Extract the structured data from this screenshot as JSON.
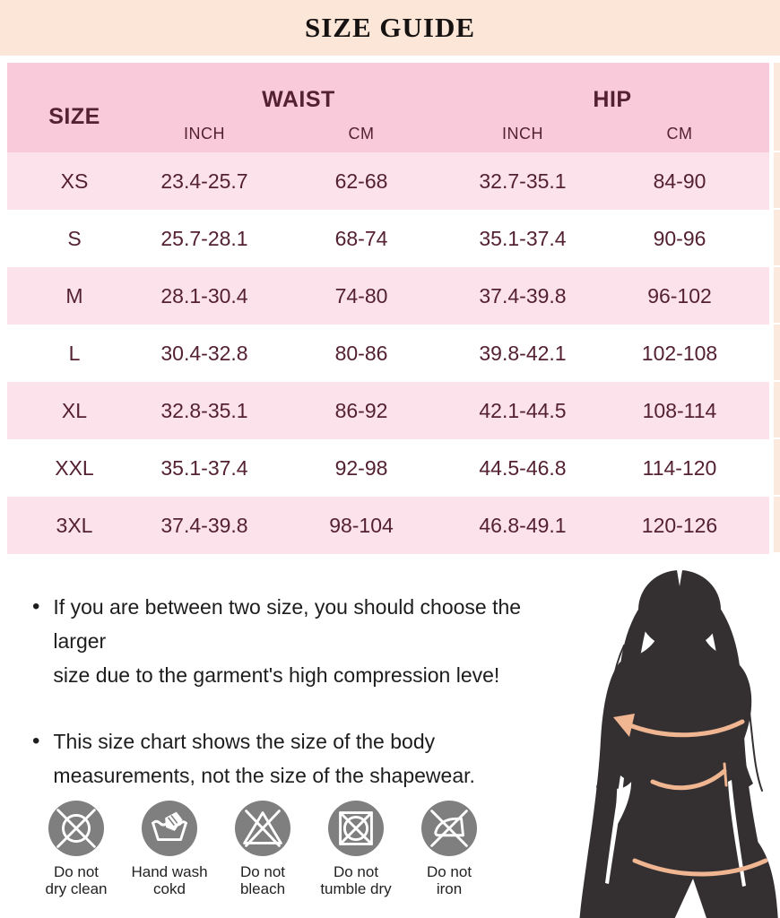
{
  "title": "SIZE GUIDE",
  "table": {
    "size_header": "SIZE",
    "waist_header": "WAIST",
    "hip_header": "HIP",
    "unit_headers": [
      "INCH",
      "CM",
      "INCH",
      "CM"
    ],
    "rows": [
      [
        "XS",
        "23.4-25.7",
        "62-68",
        "32.7-35.1",
        "84-90"
      ],
      [
        "S",
        "25.7-28.1",
        "68-74",
        "35.1-37.4",
        "90-96"
      ],
      [
        "M",
        "28.1-30.4",
        "74-80",
        "37.4-39.8",
        "96-102"
      ],
      [
        "L",
        "30.4-32.8",
        "80-86",
        "39.8-42.1",
        "102-108"
      ],
      [
        "XL",
        "32.8-35.1",
        "86-92",
        "42.1-44.5",
        "108-114"
      ],
      [
        "XXL",
        "35.1-37.4",
        "92-98",
        "44.5-46.8",
        "114-120"
      ],
      [
        "3XL",
        "37.4-39.8",
        "98-104",
        "46.8-49.1",
        "120-126"
      ]
    ]
  },
  "notes": [
    [
      "If you are between two size, you should choose the larger",
      "size due to the garment's high compression leve!"
    ],
    [
      "This size chart shows the size of the body",
      "measurements, not the size of the shapewear."
    ]
  ],
  "care": [
    {
      "icon": "do-not-dry-clean",
      "label": [
        "Do not",
        "dry clean"
      ]
    },
    {
      "icon": "hand-wash",
      "label": [
        "Hand wash",
        "cokd"
      ]
    },
    {
      "icon": "do-not-bleach",
      "label": [
        "Do not",
        "bleach"
      ]
    },
    {
      "icon": "do-not-tumble-dry",
      "label": [
        "Do not",
        "tumble dry"
      ]
    },
    {
      "icon": "do-not-iron",
      "label": [
        "Do not",
        "iron"
      ]
    }
  ],
  "colors": {
    "banner_bg": "#fbe6d7",
    "header_pink": "#f9cada",
    "row_pink": "#fce3eb",
    "maroon": "#542132",
    "text_dark": "#1d1d1d",
    "care_gray": "#7f7f7f",
    "silhouette": "#343031",
    "tape_peach": "#f0b591",
    "strip_peach": "#fbe9dd"
  }
}
